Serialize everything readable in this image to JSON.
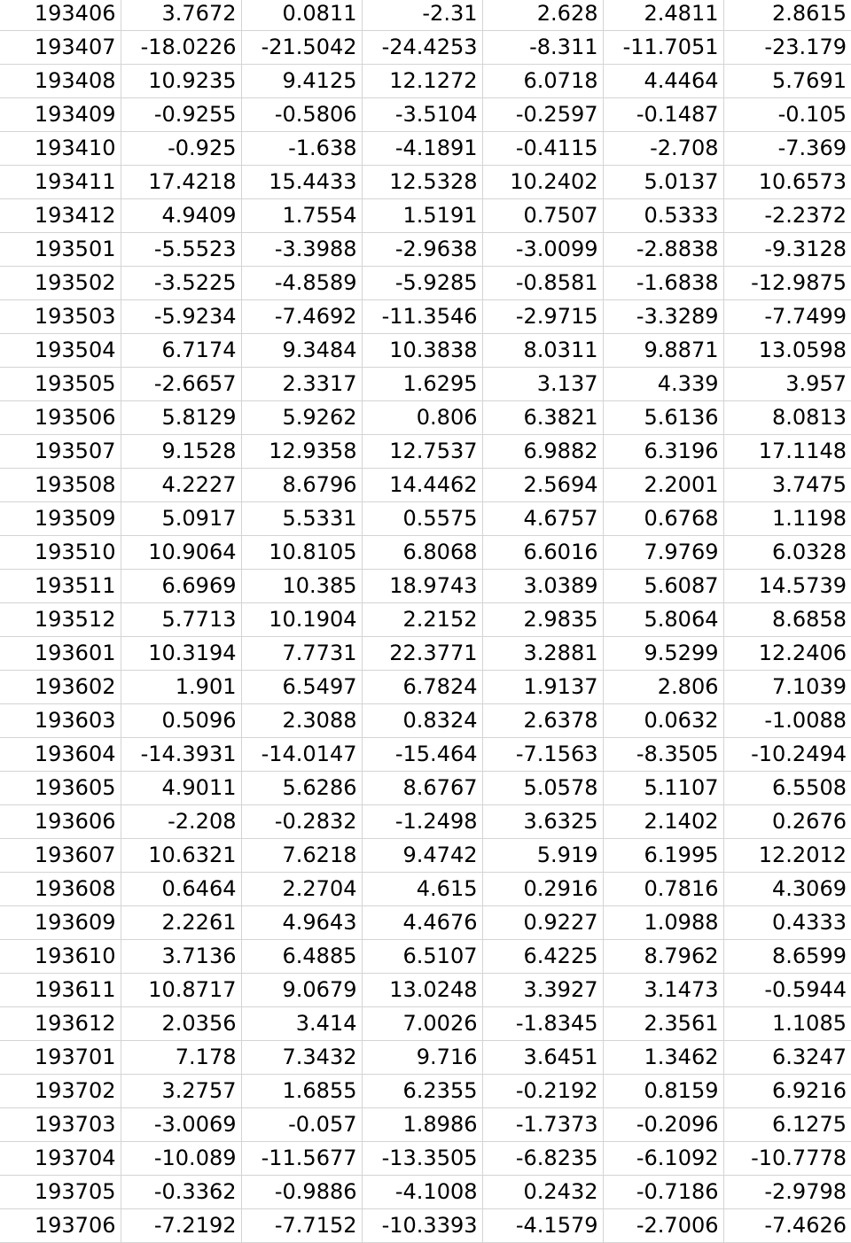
{
  "rows": [
    [
      "193406",
      "3.7672",
      "0.0811",
      "-2.31",
      "2.628",
      "2.4811",
      "2.8615"
    ],
    [
      "193407",
      "-18.0226",
      "-21.5042",
      "-24.4253",
      "-8.311",
      "-11.7051",
      "-23.179"
    ],
    [
      "193408",
      "10.9235",
      "9.4125",
      "12.1272",
      "6.0718",
      "4.4464",
      "5.7691"
    ],
    [
      "193409",
      "-0.9255",
      "-0.5806",
      "-3.5104",
      "-0.2597",
      "-0.1487",
      "-0.105"
    ],
    [
      "193410",
      "-0.925",
      "-1.638",
      "-4.1891",
      "-0.4115",
      "-2.708",
      "-7.369"
    ],
    [
      "193411",
      "17.4218",
      "15.4433",
      "12.5328",
      "10.2402",
      "5.0137",
      "10.6573"
    ],
    [
      "193412",
      "4.9409",
      "1.7554",
      "1.5191",
      "0.7507",
      "0.5333",
      "-2.2372"
    ],
    [
      "193501",
      "-5.5523",
      "-3.3988",
      "-2.9638",
      "-3.0099",
      "-2.8838",
      "-9.3128"
    ],
    [
      "193502",
      "-3.5225",
      "-4.8589",
      "-5.9285",
      "-0.8581",
      "-1.6838",
      "-12.9875"
    ],
    [
      "193503",
      "-5.9234",
      "-7.4692",
      "-11.3546",
      "-2.9715",
      "-3.3289",
      "-7.7499"
    ],
    [
      "193504",
      "6.7174",
      "9.3484",
      "10.3838",
      "8.0311",
      "9.8871",
      "13.0598"
    ],
    [
      "193505",
      "-2.6657",
      "2.3317",
      "1.6295",
      "3.137",
      "4.339",
      "3.957"
    ],
    [
      "193506",
      "5.8129",
      "5.9262",
      "0.806",
      "6.3821",
      "5.6136",
      "8.0813"
    ],
    [
      "193507",
      "9.1528",
      "12.9358",
      "12.7537",
      "6.9882",
      "6.3196",
      "17.1148"
    ],
    [
      "193508",
      "4.2227",
      "8.6796",
      "14.4462",
      "2.5694",
      "2.2001",
      "3.7475"
    ],
    [
      "193509",
      "5.0917",
      "5.5331",
      "0.5575",
      "4.6757",
      "0.6768",
      "1.1198"
    ],
    [
      "193510",
      "10.9064",
      "10.8105",
      "6.8068",
      "6.6016",
      "7.9769",
      "6.0328"
    ],
    [
      "193511",
      "6.6969",
      "10.385",
      "18.9743",
      "3.0389",
      "5.6087",
      "14.5739"
    ],
    [
      "193512",
      "5.7713",
      "10.1904",
      "2.2152",
      "2.9835",
      "5.8064",
      "8.6858"
    ],
    [
      "193601",
      "10.3194",
      "7.7731",
      "22.3771",
      "3.2881",
      "9.5299",
      "12.2406"
    ],
    [
      "193602",
      "1.901",
      "6.5497",
      "6.7824",
      "1.9137",
      "2.806",
      "7.1039"
    ],
    [
      "193603",
      "0.5096",
      "2.3088",
      "0.8324",
      "2.6378",
      "0.0632",
      "-1.0088"
    ],
    [
      "193604",
      "-14.3931",
      "-14.0147",
      "-15.464",
      "-7.1563",
      "-8.3505",
      "-10.2494"
    ],
    [
      "193605",
      "4.9011",
      "5.6286",
      "8.6767",
      "5.0578",
      "5.1107",
      "6.5508"
    ],
    [
      "193606",
      "-2.208",
      "-0.2832",
      "-1.2498",
      "3.6325",
      "2.1402",
      "0.2676"
    ],
    [
      "193607",
      "10.6321",
      "7.6218",
      "9.4742",
      "5.919",
      "6.1995",
      "12.2012"
    ],
    [
      "193608",
      "0.6464",
      "2.2704",
      "4.615",
      "0.2916",
      "0.7816",
      "4.3069"
    ],
    [
      "193609",
      "2.2261",
      "4.9643",
      "4.4676",
      "0.9227",
      "1.0988",
      "0.4333"
    ],
    [
      "193610",
      "3.7136",
      "6.4885",
      "6.5107",
      "6.4225",
      "8.7962",
      "8.6599"
    ],
    [
      "193611",
      "10.8717",
      "9.0679",
      "13.0248",
      "3.3927",
      "3.1473",
      "-0.5944"
    ],
    [
      "193612",
      "2.0356",
      "3.414",
      "7.0026",
      "-1.8345",
      "2.3561",
      "1.1085"
    ],
    [
      "193701",
      "7.178",
      "7.3432",
      "9.716",
      "3.6451",
      "1.3462",
      "6.3247"
    ],
    [
      "193702",
      "3.2757",
      "1.6855",
      "6.2355",
      "-0.2192",
      "0.8159",
      "6.9216"
    ],
    [
      "193703",
      "-3.0069",
      "-0.057",
      "1.8986",
      "-1.7373",
      "-0.2096",
      "6.1275"
    ],
    [
      "193704",
      "-10.089",
      "-11.5677",
      "-13.3505",
      "-6.8235",
      "-6.1092",
      "-10.7778"
    ],
    [
      "193705",
      "-0.3362",
      "-0.9886",
      "-4.1008",
      "0.2432",
      "-0.7186",
      "-2.9798"
    ],
    [
      "193706",
      "-7.2192",
      "-7.7152",
      "-10.3393",
      "-4.1579",
      "-2.7006",
      "-7.4626"
    ]
  ]
}
